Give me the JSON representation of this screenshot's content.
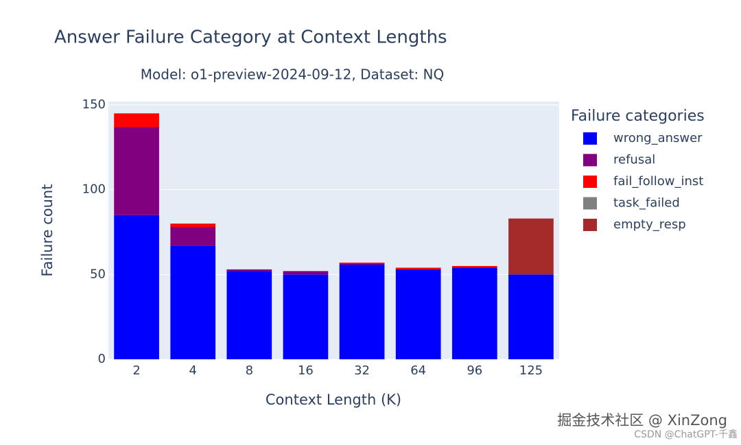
{
  "chart_data": {
    "type": "stacked_bar",
    "title": "Answer Failure Category at Context Lengths",
    "subtitle": "Model: o1-preview-2024-09-12, Dataset: NQ",
    "x_label": "Context Length (K)",
    "y_label": "Failure count",
    "categories": [
      "2",
      "4",
      "8",
      "16",
      "32",
      "64",
      "96",
      "125"
    ],
    "series": [
      {
        "name": "wrong_answer",
        "color": "#0000ff",
        "values": [
          85,
          67,
          52,
          50,
          56,
          53,
          54,
          50
        ]
      },
      {
        "name": "refusal",
        "color": "#800080",
        "values": [
          52,
          11,
          1,
          2,
          0,
          0,
          0,
          0
        ]
      },
      {
        "name": "fail_follow_inst",
        "color": "#ff0000",
        "values": [
          8,
          2,
          0,
          0,
          1,
          1,
          1,
          0
        ]
      },
      {
        "name": "task_failed",
        "color": "#808080",
        "values": [
          0,
          0,
          0,
          0,
          0,
          0,
          0,
          0
        ]
      },
      {
        "name": "empty_resp",
        "color": "#a52a2a",
        "values": [
          0,
          0,
          0,
          0,
          0,
          0,
          0,
          33
        ]
      }
    ],
    "legend_title": "Failure categories",
    "legend_position": "right",
    "ylim": [
      0,
      152
    ],
    "yticks": [
      0,
      50,
      100,
      150
    ],
    "grid": true,
    "watermarks": [
      "掘金技术社区 @ XinZong",
      "CSDN @ChatGPT-千鑫"
    ]
  }
}
